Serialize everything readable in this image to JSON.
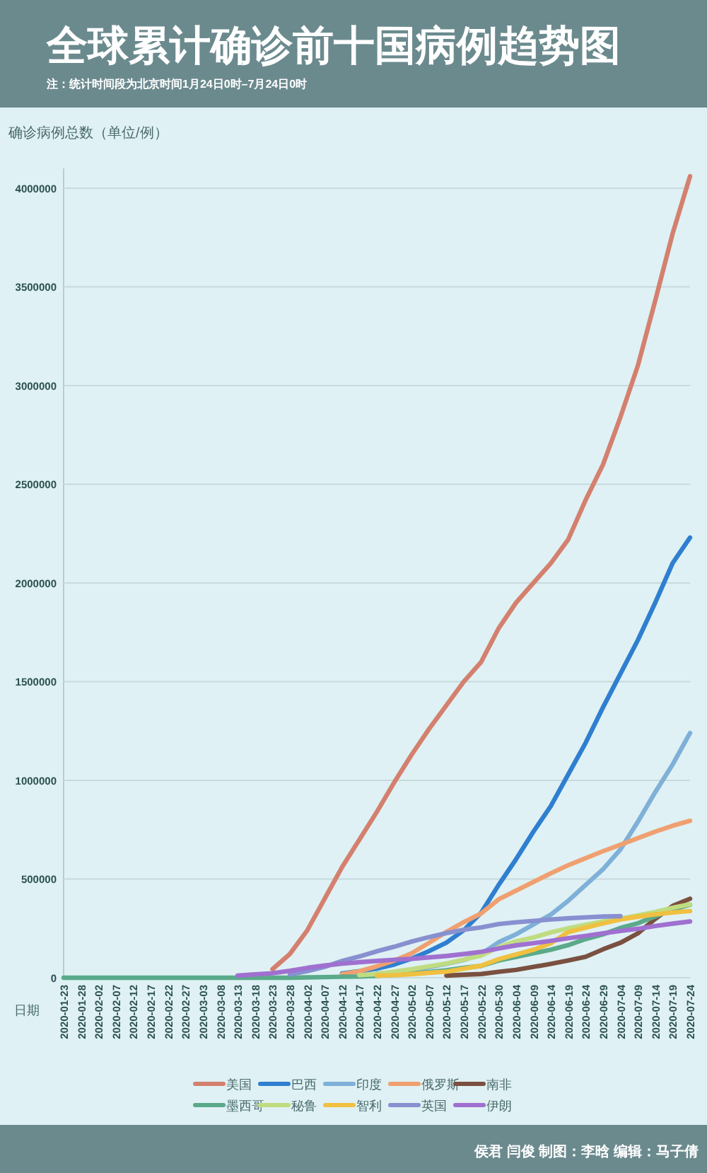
{
  "chart_data": {
    "type": "line",
    "title": "全球累计确诊前十国病例趋势图",
    "subtitle": "注：统计时间段为北京时间1月24日0时–7月24日0时",
    "ylabel": "确诊病例总数（单位/例）",
    "xlabel": "日期",
    "categories": [
      "2020-01-23",
      "2020-01-28",
      "2020-02-02",
      "2020-02-07",
      "2020-02-12",
      "2020-02-17",
      "2020-02-22",
      "2020-02-27",
      "2020-03-03",
      "2020-03-08",
      "2020-03-13",
      "2020-03-18",
      "2020-03-23",
      "2020-03-28",
      "2020-04-02",
      "2020-04-07",
      "2020-04-12",
      "2020-04-17",
      "2020-04-22",
      "2020-04-27",
      "2020-05-02",
      "2020-05-07",
      "2020-05-12",
      "2020-05-17",
      "2020-05-22",
      "2020-05-30",
      "2020-06-04",
      "2020-06-09",
      "2020-06-14",
      "2020-06-19",
      "2020-06-24",
      "2020-06-29",
      "2020-07-04",
      "2020-07-09",
      "2020-07-14",
      "2020-07-19",
      "2020-07-24"
    ],
    "series": [
      {
        "name": "美国",
        "color": "#d4806e",
        "values": [
          null,
          null,
          null,
          null,
          null,
          null,
          null,
          null,
          null,
          null,
          null,
          null,
          43000,
          120000,
          240000,
          400000,
          560000,
          700000,
          840000,
          990000,
          1130000,
          1260000,
          1380000,
          1500000,
          1600000,
          1770000,
          1900000,
          2000000,
          2100000,
          2220000,
          2420000,
          2600000,
          2840000,
          3100000,
          3430000,
          3770000,
          4060000
        ]
      },
      {
        "name": "巴西",
        "color": "#2f7fd0",
        "values": [
          null,
          null,
          null,
          null,
          null,
          null,
          null,
          null,
          null,
          null,
          null,
          null,
          null,
          null,
          null,
          null,
          22000,
          33000,
          46000,
          67000,
          97000,
          135000,
          178000,
          241000,
          330000,
          470000,
          600000,
          740000,
          870000,
          1030000,
          1190000,
          1370000,
          1540000,
          1710000,
          1900000,
          2100000,
          2230000
        ]
      },
      {
        "name": "印度",
        "color": "#7fb0d8",
        "values": [
          null,
          null,
          null,
          null,
          null,
          null,
          null,
          null,
          null,
          null,
          null,
          null,
          null,
          null,
          null,
          null,
          null,
          null,
          21000,
          28000,
          37000,
          53000,
          70000,
          90000,
          120000,
          180000,
          220000,
          270000,
          320000,
          390000,
          470000,
          550000,
          650000,
          790000,
          940000,
          1080000,
          1240000
        ]
      },
      {
        "name": "俄罗斯",
        "color": "#f0a070",
        "values": [
          null,
          null,
          null,
          null,
          null,
          null,
          null,
          null,
          null,
          null,
          null,
          null,
          null,
          null,
          null,
          null,
          18000,
          33000,
          58000,
          87000,
          124000,
          177000,
          232000,
          282000,
          326000,
          397000,
          441000,
          485000,
          529000,
          570000,
          606000,
          641000,
          674000,
          707000,
          740000,
          770000,
          795000
        ]
      },
      {
        "name": "南非",
        "color": "#7a5040",
        "values": [
          null,
          null,
          null,
          null,
          null,
          null,
          null,
          null,
          null,
          null,
          null,
          null,
          null,
          null,
          null,
          null,
          null,
          null,
          null,
          null,
          null,
          null,
          11000,
          15000,
          19000,
          30000,
          40000,
          55000,
          70000,
          87000,
          106000,
          144000,
          177000,
          225000,
          298000,
          364000,
          400000
        ]
      },
      {
        "name": "墨西哥",
        "color": "#5aaa8a",
        "values": [
          0,
          0,
          0,
          0,
          0,
          0,
          0,
          0,
          0,
          0,
          0,
          0,
          0,
          0,
          2000,
          3000,
          5000,
          6000,
          10000,
          15000,
          22000,
          29000,
          38000,
          50000,
          60000,
          87000,
          105000,
          124000,
          142000,
          165000,
          196000,
          220000,
          252000,
          276000,
          311000,
          344000,
          370000
        ]
      },
      {
        "name": "秘鲁",
        "color": "#c0dc80",
        "values": [
          null,
          null,
          null,
          null,
          null,
          null,
          null,
          null,
          null,
          null,
          null,
          null,
          null,
          null,
          null,
          null,
          null,
          13000,
          19000,
          31000,
          43000,
          58000,
          72000,
          92000,
          112000,
          155000,
          184000,
          204000,
          230000,
          250000,
          268000,
          285000,
          300000,
          316000,
          333000,
          354000,
          372000
        ]
      },
      {
        "name": "智利",
        "color": "#f0c040",
        "values": [
          null,
          null,
          null,
          null,
          null,
          null,
          null,
          null,
          null,
          null,
          null,
          null,
          null,
          null,
          null,
          null,
          null,
          null,
          11000,
          13000,
          18000,
          25000,
          31000,
          46000,
          61000,
          94000,
          118000,
          142000,
          175000,
          231000,
          254000,
          275000,
          295000,
          309000,
          321000,
          330000,
          338000
        ]
      },
      {
        "name": "英国",
        "color": "#8890d0",
        "values": [
          null,
          null,
          null,
          null,
          null,
          null,
          null,
          null,
          null,
          null,
          null,
          null,
          null,
          17000,
          34000,
          55000,
          85000,
          108000,
          134000,
          157000,
          183000,
          206000,
          226000,
          243000,
          255000,
          272000,
          281000,
          288000,
          295000,
          301000,
          306000,
          310000,
          312000,
          null,
          null,
          null,
          null
        ]
      },
      {
        "name": "伊朗",
        "color": "#a070d0",
        "values": [
          null,
          null,
          null,
          null,
          null,
          null,
          null,
          null,
          null,
          null,
          11000,
          17000,
          23000,
          35000,
          50000,
          62000,
          71000,
          79000,
          85000,
          91000,
          96000,
          103000,
          110000,
          120000,
          131000,
          148000,
          164000,
          175000,
          187000,
          200000,
          212000,
          225000,
          237000,
          248000,
          262000,
          274000,
          285000
        ]
      }
    ],
    "ylim": [
      0,
      4100000
    ],
    "yticks": [
      0,
      500000,
      1000000,
      1500000,
      2000000,
      2500000,
      3000000,
      3500000,
      4000000
    ],
    "grid": "y",
    "legend": "bottom",
    "line_style": "solid",
    "annotations": [
      "侯君 闫俊 制图：李晗 编辑：马子倩"
    ]
  }
}
